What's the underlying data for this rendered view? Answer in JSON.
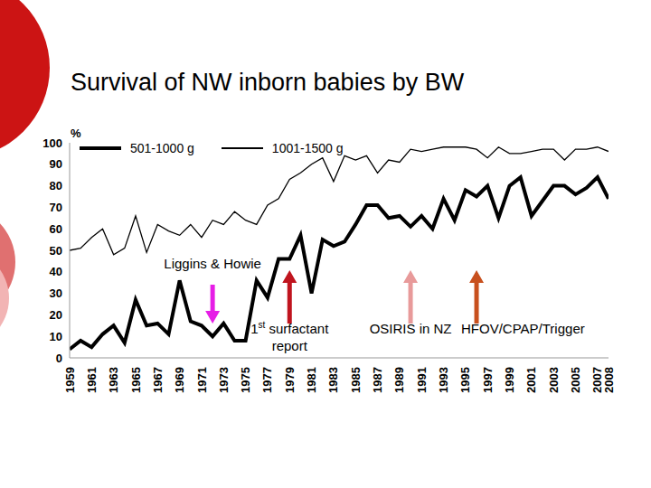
{
  "chart_data": {
    "type": "line",
    "title": "Survival of NW inborn babies by BW",
    "y_label": "%",
    "x": [
      1959,
      1960,
      1961,
      1962,
      1963,
      1964,
      1965,
      1966,
      1967,
      1968,
      1969,
      1970,
      1971,
      1972,
      1973,
      1974,
      1975,
      1976,
      1977,
      1978,
      1979,
      1980,
      1981,
      1982,
      1983,
      1984,
      1985,
      1986,
      1987,
      1988,
      1989,
      1990,
      1991,
      1992,
      1993,
      1994,
      1995,
      1996,
      1997,
      1998,
      1999,
      2000,
      2001,
      2002,
      2003,
      2004,
      2005,
      2006,
      2007,
      2008
    ],
    "xlim": [
      1959,
      2008
    ],
    "xticks": [
      1959,
      1961,
      1963,
      1965,
      1967,
      1969,
      1971,
      1973,
      1975,
      1977,
      1979,
      1981,
      1983,
      1985,
      1987,
      1989,
      1991,
      1993,
      1995,
      1997,
      1999,
      2001,
      2003,
      2005,
      2007,
      2008
    ],
    "ylim": [
      0,
      100
    ],
    "yticks": [
      0,
      10,
      20,
      30,
      40,
      50,
      60,
      70,
      80,
      90,
      100
    ],
    "grid": false,
    "legend": "top",
    "series": [
      {
        "name": "501-1000 g",
        "color": "#000000",
        "line_style": "thick",
        "values": [
          4,
          8,
          5,
          11,
          15,
          7,
          27,
          15,
          16,
          11,
          36,
          17,
          15,
          10,
          16,
          8,
          8,
          36,
          28,
          46,
          46,
          57,
          30,
          55,
          52,
          54,
          62,
          71,
          71,
          65,
          66,
          61,
          66,
          60,
          74,
          64,
          78,
          75,
          80,
          65,
          80,
          84,
          66,
          73,
          80,
          80,
          76,
          79,
          84,
          74
        ]
      },
      {
        "name": "1001-1500 g",
        "color": "#000000",
        "line_style": "thin",
        "values": [
          50,
          51,
          56,
          60,
          48,
          51,
          66,
          49,
          62,
          59,
          57,
          62,
          56,
          64,
          62,
          68,
          64,
          62,
          71,
          74,
          83,
          86,
          90,
          93,
          82,
          94,
          92,
          94,
          86,
          92,
          91,
          97,
          96,
          97,
          98,
          98,
          98,
          97,
          93,
          98,
          95,
          95,
          96,
          97,
          97,
          92,
          97,
          97,
          98,
          96
        ]
      }
    ],
    "annotations": [
      {
        "text": "Liggins & Howie",
        "x": 1972,
        "color": "#e61ee6"
      },
      {
        "text": "1st surfactant report",
        "x": 1979,
        "color": "#c0141e"
      },
      {
        "text": "OSIRIS in NZ",
        "x": 1990,
        "color": "#e89a9a"
      },
      {
        "text": "HFOV/CPAP/Trigger",
        "x": 1996,
        "color": "#c8501e"
      }
    ]
  }
}
